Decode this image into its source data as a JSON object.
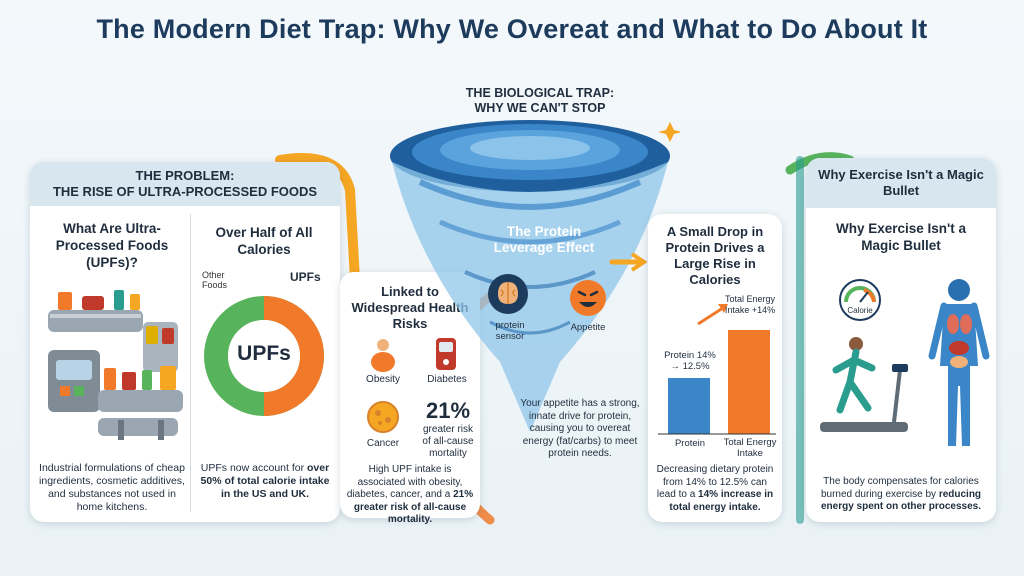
{
  "title": "The Modern Diet Trap: Why We Overeat and What to Do About It",
  "problem": {
    "header_line1": "THE PROBLEM:",
    "header_line2": "THE RISE OF ULTRA-PROCESSED FOODS",
    "what_title": "What Are Ultra-Processed Foods (UPFs)?",
    "what_desc": "Industrial formulations of cheap ingredients, cosmetic additives, and substances not used in home kitchens.",
    "half_title": "Over Half of All Calories",
    "ring_center": "UPFs",
    "ring_label_other": "Other Foods",
    "ring_label_upf": "UPFs",
    "ring_upf_percent": 50,
    "half_desc_pre": "UPFs now account for ",
    "half_desc_bold": "over 50% of total calorie intake in the US and UK."
  },
  "health": {
    "title": "Linked to Widespread Health Risks",
    "obesity": "Obesity",
    "diabetes": "Diabetes",
    "cancer": "Cancer",
    "stat_value": "21%",
    "stat_text": "greater risk of all-cause mortality",
    "desc_pre": "High UPF intake is associated with obesity, diabetes, cancer, and a ",
    "desc_bold": "21% greater risk of all-cause mortality."
  },
  "trap": {
    "title_line1": "THE BIOLOGICAL TRAP:",
    "title_line2": "WHY WE CAN'T STOP",
    "effect_title": "The Protein Leverage Effect",
    "sensor_label": "protein sensor",
    "appetite_label": "Appetite",
    "desc": "Your appetite has a strong, innate drive for protein, causing you to overeat energy (fat/carbs) to meet protein needs."
  },
  "protein": {
    "title": "A Small Drop in Protein Drives a Large Rise in Calories",
    "bar_protein_label": "Protein 14% → 12.5%",
    "bar_energy_label": "Total Energy Intake +14%",
    "x_protein": "Protein",
    "x_energy": "Total Energy Intake",
    "desc_pre": "Decreasing dietary protein from 14% to 12.5% can lead to a ",
    "desc_bold": "14% increase in total energy intake."
  },
  "chart_data": {
    "type": "bar",
    "categories": [
      "Protein",
      "Total Energy Intake"
    ],
    "values": [
      14,
      114
    ],
    "annotations": [
      "Protein 14% → 12.5%",
      "Total Energy Intake +14%"
    ]
  },
  "exercise": {
    "header": "Why Exercise Isn't a Magic Bullet",
    "title": "Why Exercise Isn't a Magic Bullet",
    "gauge_label": "Calorie",
    "desc_pre": "The body compensates for calories burned during exercise by ",
    "desc_bold": "reducing energy spent on other processes."
  },
  "colors": {
    "blue": "#3a86c8",
    "orange": "#f07a2a",
    "green": "#58b45c",
    "navy": "#1d3b5c",
    "teal": "#2a9d8f",
    "yellow": "#f5a623"
  }
}
